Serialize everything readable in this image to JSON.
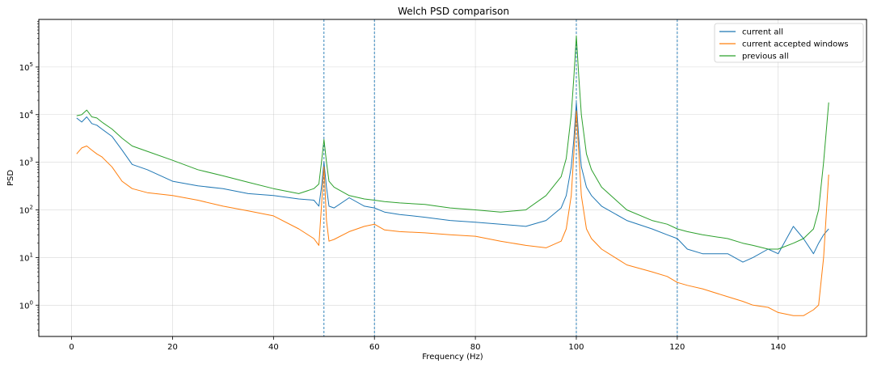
{
  "chart_data": {
    "type": "line",
    "title": "Welch PSD comparison",
    "xlabel": "Frequency (Hz)",
    "ylabel": "PSD",
    "xlim": [
      -6.5,
      157.5
    ],
    "ylim": [
      0.22,
      1000000
    ],
    "yscale": "log",
    "grid": true,
    "legend_position": "top-right",
    "x_ticks": [
      0,
      20,
      40,
      60,
      80,
      100,
      120,
      140
    ],
    "x_tick_labels": [
      "0",
      "20",
      "40",
      "60",
      "80",
      "100",
      "120",
      "140"
    ],
    "y_ticks": [
      1,
      10,
      100,
      1000,
      10000,
      100000
    ],
    "y_tick_labels": [
      {
        "base": "10",
        "exp": "0"
      },
      {
        "base": "10",
        "exp": "1"
      },
      {
        "base": "10",
        "exp": "2"
      },
      {
        "base": "10",
        "exp": "3"
      },
      {
        "base": "10",
        "exp": "4"
      },
      {
        "base": "10",
        "exp": "5"
      }
    ],
    "vlines": [
      50,
      60,
      100,
      120
    ],
    "vline_color": "#1f77b4",
    "series": [
      {
        "name": "current all",
        "color": "#1f77b4",
        "x": [
          1,
          2,
          3,
          4,
          5,
          6,
          8,
          10,
          12,
          15,
          20,
          25,
          30,
          35,
          40,
          45,
          48,
          49,
          49.5,
          50,
          50.5,
          51,
          52,
          55,
          58,
          60,
          62,
          65,
          70,
          75,
          80,
          85,
          90,
          94,
          97,
          98,
          99,
          99.5,
          100,
          100.5,
          101,
          102,
          103,
          105,
          110,
          115,
          118,
          120,
          122,
          125,
          130,
          133,
          135,
          138,
          140,
          143,
          145,
          147,
          148,
          149,
          150
        ],
        "values": [
          8500,
          7000,
          9000,
          6500,
          6000,
          5000,
          3500,
          1800,
          900,
          700,
          400,
          320,
          280,
          220,
          200,
          170,
          160,
          120,
          300,
          1000,
          300,
          120,
          110,
          180,
          120,
          110,
          90,
          80,
          70,
          60,
          55,
          50,
          45,
          60,
          110,
          200,
          800,
          3000,
          18000,
          3000,
          800,
          300,
          200,
          120,
          60,
          40,
          30,
          25,
          15,
          12,
          12,
          8,
          10,
          15,
          12,
          45,
          25,
          12,
          20,
          30,
          40
        ]
      },
      {
        "name": "current accepted windows",
        "color": "#ff7f0e",
        "x": [
          1,
          2,
          3,
          4,
          5,
          6,
          8,
          10,
          12,
          15,
          20,
          25,
          30,
          35,
          40,
          45,
          48,
          49,
          49.5,
          50,
          50.5,
          51,
          52,
          55,
          58,
          60,
          62,
          65,
          70,
          75,
          80,
          85,
          90,
          94,
          97,
          98,
          99,
          99.5,
          100,
          100.5,
          101,
          102,
          103,
          105,
          110,
          115,
          118,
          120,
          122,
          125,
          130,
          133,
          135,
          138,
          140,
          143,
          145,
          147,
          148,
          149,
          150
        ],
        "values": [
          1500,
          2000,
          2200,
          1800,
          1500,
          1300,
          800,
          400,
          280,
          230,
          200,
          160,
          120,
          95,
          75,
          40,
          25,
          18,
          120,
          800,
          60,
          22,
          24,
          35,
          45,
          50,
          38,
          35,
          33,
          30,
          28,
          22,
          18,
          16,
          22,
          40,
          200,
          1500,
          12000,
          1500,
          200,
          40,
          25,
          15,
          7,
          5,
          4,
          3,
          2.6,
          2.2,
          1.5,
          1.2,
          1.0,
          0.9,
          0.7,
          0.6,
          0.6,
          0.8,
          1.0,
          10,
          550
        ]
      },
      {
        "name": "previous all",
        "color": "#2ca02c",
        "x": [
          1,
          2,
          3,
          4,
          5,
          6,
          8,
          10,
          12,
          15,
          20,
          25,
          30,
          35,
          40,
          45,
          48,
          49,
          49.5,
          50,
          50.5,
          51,
          52,
          55,
          58,
          60,
          62,
          65,
          70,
          75,
          80,
          85,
          90,
          94,
          97,
          98,
          99,
          99.5,
          100,
          100.5,
          101,
          102,
          103,
          105,
          110,
          115,
          118,
          120,
          122,
          125,
          130,
          133,
          135,
          138,
          140,
          143,
          145,
          147,
          148,
          149,
          150
        ],
        "values": [
          9500,
          10000,
          12500,
          9000,
          8500,
          7000,
          5000,
          3200,
          2200,
          1700,
          1100,
          700,
          520,
          380,
          280,
          220,
          280,
          350,
          1000,
          3000,
          1000,
          400,
          300,
          200,
          170,
          160,
          150,
          140,
          130,
          110,
          100,
          90,
          100,
          200,
          500,
          1200,
          10000,
          60000,
          450000,
          60000,
          10000,
          1500,
          700,
          300,
          100,
          60,
          50,
          40,
          35,
          30,
          25,
          20,
          18,
          15,
          15,
          20,
          25,
          40,
          100,
          1000,
          18000
        ]
      }
    ]
  }
}
